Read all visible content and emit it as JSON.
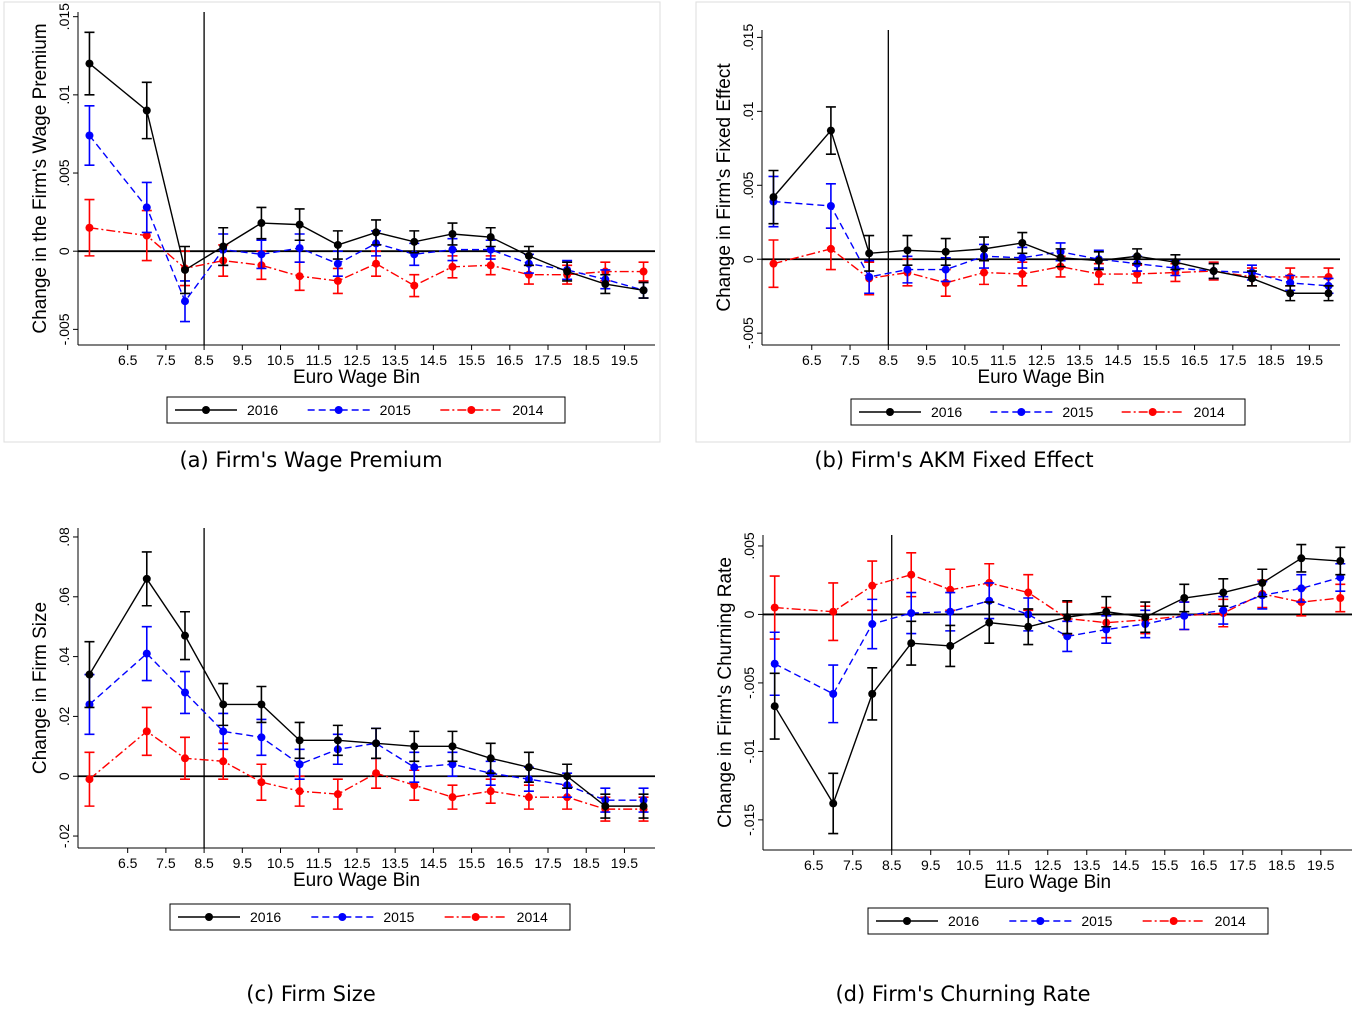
{
  "chart_data": [
    {
      "type": "line",
      "caption": "(a) Firm's Wage Premium",
      "ylabel": "Change in the Firm's Wage Premium",
      "xlabel": "Euro Wage Bin",
      "x": [
        5.5,
        7,
        8,
        9,
        10,
        11,
        12,
        13,
        14,
        15,
        16,
        17,
        18,
        19,
        20
      ],
      "xlim": [
        5.2,
        20.3
      ],
      "xticks": [
        6.5,
        7.5,
        8.5,
        9.5,
        10.5,
        11.5,
        12.5,
        13.5,
        14.5,
        15.5,
        16.5,
        17.5,
        18.5,
        19.5
      ],
      "ylim": [
        -0.006,
        0.0153
      ],
      "yticks": [
        {
          "value": -0.005,
          "label": "-.005"
        },
        0,
        {
          "value": 0.005,
          "label": ".005"
        },
        {
          "value": 0.01,
          "label": ".01"
        },
        {
          "value": 0.015,
          "label": ".015"
        }
      ],
      "vline": 8.5,
      "hline": 0,
      "series": [
        {
          "name": "2016",
          "color": "#000000",
          "style": "solid",
          "values": [
            0.012,
            0.009,
            -0.0012,
            0.0003,
            0.0018,
            0.0017,
            0.0004,
            0.0012,
            0.0006,
            0.0011,
            0.0009,
            -0.0003,
            -0.0013,
            -0.0021,
            -0.0025
          ],
          "errors": [
            0.002,
            0.0018,
            0.0015,
            0.0012,
            0.001,
            0.001,
            0.0009,
            0.0008,
            0.0007,
            0.0007,
            0.0006,
            0.0006,
            0.0006,
            0.0006,
            0.0005
          ]
        },
        {
          "name": "2015",
          "color": "#0000ff",
          "style": "dashed",
          "values": [
            0.0074,
            0.0028,
            -0.0032,
            0.0001,
            -0.0002,
            0.0002,
            -0.0008,
            0.0005,
            -0.0002,
            0.0001,
            0.0001,
            -0.0008,
            -0.0012,
            -0.0018,
            -0.0025
          ],
          "errors": [
            0.0019,
            0.0016,
            0.0013,
            0.001,
            0.0009,
            0.0009,
            0.0008,
            0.0008,
            0.0007,
            0.0007,
            0.0006,
            0.0006,
            0.0006,
            0.0006,
            0.0005
          ]
        },
        {
          "name": "2014",
          "color": "#ff0000",
          "style": "dashdot",
          "values": [
            0.0015,
            0.001,
            -0.0011,
            -0.0006,
            -0.0009,
            -0.0016,
            -0.0019,
            -0.0008,
            -0.0022,
            -0.001,
            -0.0009,
            -0.0015,
            -0.0015,
            -0.0013,
            -0.0013
          ],
          "errors": [
            0.0018,
            0.0016,
            0.0011,
            0.001,
            0.0009,
            0.0009,
            0.0008,
            0.0008,
            0.0007,
            0.0007,
            0.0006,
            0.0006,
            0.0006,
            0.0006,
            0.0006
          ]
        }
      ]
    },
    {
      "type": "line",
      "caption": "(b) Firm's AKM Fixed Effect",
      "ylabel": "Change in Firm's Fixed Effect",
      "xlabel": "Euro Wage Bin",
      "x": [
        5.5,
        7,
        8,
        9,
        10,
        11,
        12,
        13,
        14,
        15,
        16,
        17,
        18,
        19,
        20
      ],
      "xlim": [
        5.2,
        20.3
      ],
      "xticks": [
        6.5,
        7.5,
        8.5,
        9.5,
        10.5,
        11.5,
        12.5,
        13.5,
        14.5,
        15.5,
        16.5,
        17.5,
        18.5,
        19.5
      ],
      "ylim": [
        -0.0058,
        0.0155
      ],
      "yticks": [
        {
          "value": -0.005,
          "label": "-.005"
        },
        0,
        {
          "value": 0.005,
          "label": ".005"
        },
        {
          "value": 0.01,
          "label": ".01"
        },
        {
          "value": 0.015,
          "label": ".015"
        }
      ],
      "vline": 8.5,
      "hline": 0,
      "series": [
        {
          "name": "2016",
          "color": "#000000",
          "style": "solid",
          "values": [
            0.0042,
            0.0087,
            0.0004,
            0.0006,
            0.0005,
            0.0007,
            0.0011,
            0.0001,
            -0.0001,
            0.0002,
            -0.0002,
            -0.0008,
            -0.0013,
            -0.0023,
            -0.0023
          ],
          "errors": [
            0.0018,
            0.0016,
            0.0012,
            0.001,
            0.0009,
            0.0008,
            0.0007,
            0.0006,
            0.0006,
            0.0005,
            0.0005,
            0.0005,
            0.0005,
            0.0005,
            0.0005
          ]
        },
        {
          "name": "2015",
          "color": "#0000ff",
          "style": "dashed",
          "values": [
            0.0039,
            0.0036,
            -0.0012,
            -0.0007,
            -0.0007,
            0.0002,
            0.0001,
            0.0005,
            0.0,
            -0.0003,
            -0.0006,
            -0.0008,
            -0.0009,
            -0.0016,
            -0.0018
          ],
          "errors": [
            0.0017,
            0.0015,
            0.0011,
            0.0009,
            0.0008,
            0.0008,
            0.0007,
            0.0006,
            0.0006,
            0.0005,
            0.0005,
            0.0005,
            0.0005,
            0.0005,
            0.0005
          ]
        },
        {
          "name": "2014",
          "color": "#ff0000",
          "style": "dashdot",
          "values": [
            -0.0003,
            0.0007,
            -0.0013,
            -0.0009,
            -0.0016,
            -0.0009,
            -0.001,
            -0.0005,
            -0.001,
            -0.001,
            -0.0009,
            -0.0008,
            -0.0012,
            -0.0012,
            -0.0012
          ],
          "errors": [
            0.0016,
            0.0014,
            0.0011,
            0.0009,
            0.0009,
            0.0008,
            0.0008,
            0.0007,
            0.0007,
            0.0006,
            0.0006,
            0.0006,
            0.0006,
            0.0006,
            0.0006
          ]
        }
      ]
    },
    {
      "type": "line",
      "caption": "(c) Firm Size",
      "ylabel": "Change in Firm Size",
      "xlabel": "Euro Wage Bin",
      "x": [
        5.5,
        7,
        8,
        9,
        10,
        11,
        12,
        13,
        14,
        15,
        16,
        17,
        18,
        19,
        20
      ],
      "xlim": [
        5.2,
        20.3
      ],
      "xticks": [
        6.5,
        7.5,
        8.5,
        9.5,
        10.5,
        11.5,
        12.5,
        13.5,
        14.5,
        15.5,
        16.5,
        17.5,
        18.5,
        19.5
      ],
      "ylim": [
        -0.024,
        0.083
      ],
      "yticks": [
        {
          "value": -0.02,
          "label": "-.02"
        },
        0,
        {
          "value": 0.02,
          "label": ".02"
        },
        {
          "value": 0.04,
          "label": ".04"
        },
        {
          "value": 0.06,
          "label": ".06"
        },
        {
          "value": 0.08,
          "label": ".08"
        }
      ],
      "vline": 8.5,
      "hline": 0,
      "series": [
        {
          "name": "2016",
          "color": "#000000",
          "style": "solid",
          "values": [
            0.034,
            0.066,
            0.047,
            0.024,
            0.024,
            0.012,
            0.012,
            0.011,
            0.01,
            0.01,
            0.006,
            0.003,
            0.0,
            -0.01,
            -0.01
          ],
          "errors": [
            0.011,
            0.009,
            0.008,
            0.007,
            0.006,
            0.006,
            0.005,
            0.005,
            0.005,
            0.005,
            0.005,
            0.005,
            0.004,
            0.004,
            0.004
          ]
        },
        {
          "name": "2015",
          "color": "#0000ff",
          "style": "dashed",
          "values": [
            0.024,
            0.041,
            0.028,
            0.015,
            0.013,
            0.004,
            0.009,
            0.011,
            0.003,
            0.004,
            0.001,
            -0.001,
            -0.003,
            -0.008,
            -0.008
          ],
          "errors": [
            0.01,
            0.009,
            0.007,
            0.006,
            0.006,
            0.005,
            0.005,
            0.005,
            0.005,
            0.004,
            0.004,
            0.004,
            0.004,
            0.004,
            0.004
          ]
        },
        {
          "name": "2014",
          "color": "#ff0000",
          "style": "dashdot",
          "values": [
            -0.001,
            0.015,
            0.006,
            0.005,
            -0.002,
            -0.005,
            -0.006,
            0.001,
            -0.003,
            -0.007,
            -0.005,
            -0.007,
            -0.007,
            -0.011,
            -0.011
          ],
          "errors": [
            0.009,
            0.008,
            0.007,
            0.006,
            0.006,
            0.005,
            0.005,
            0.005,
            0.005,
            0.004,
            0.004,
            0.004,
            0.004,
            0.004,
            0.004
          ]
        }
      ]
    },
    {
      "type": "line",
      "caption": "(d) Firm's Churning Rate",
      "ylabel": "Change in Firm's Churning Rate",
      "xlabel": "Euro Wage Bin",
      "x": [
        5.5,
        7,
        8,
        9,
        10,
        11,
        12,
        13,
        14,
        15,
        16,
        17,
        18,
        19,
        20
      ],
      "xlim": [
        5.2,
        20.3
      ],
      "xticks": [
        6.5,
        7.5,
        8.5,
        9.5,
        10.5,
        11.5,
        12.5,
        13.5,
        14.5,
        15.5,
        16.5,
        17.5,
        18.5,
        19.5
      ],
      "ylim": [
        -0.0172,
        0.0058
      ],
      "yticks": [
        {
          "value": -0.015,
          "label": "-.015"
        },
        {
          "value": -0.01,
          "label": "-.01"
        },
        {
          "value": -0.005,
          "label": "-.005"
        },
        0,
        {
          "value": 0.005,
          "label": ".005"
        }
      ],
      "vline": 8.5,
      "hline": 0,
      "series": [
        {
          "name": "2016",
          "color": "#000000",
          "style": "solid",
          "values": [
            -0.0067,
            -0.0138,
            -0.0058,
            -0.0021,
            -0.0023,
            -0.0006,
            -0.0009,
            -0.0002,
            0.0002,
            -0.0002,
            0.0012,
            0.0016,
            0.0023,
            0.0041,
            0.0039
          ],
          "errors": [
            0.0024,
            0.0022,
            0.0019,
            0.0016,
            0.0015,
            0.0015,
            0.0013,
            0.0012,
            0.0011,
            0.0011,
            0.001,
            0.001,
            0.001,
            0.001,
            0.001
          ]
        },
        {
          "name": "2015",
          "color": "#0000ff",
          "style": "dashed",
          "values": [
            -0.0036,
            -0.0058,
            -0.0007,
            0.0001,
            0.0002,
            0.001,
            0.0,
            -0.0016,
            -0.0011,
            -0.0007,
            -0.0001,
            0.0003,
            0.0014,
            0.0019,
            0.0027
          ],
          "errors": [
            0.0023,
            0.0021,
            0.0018,
            0.0015,
            0.0014,
            0.0013,
            0.0012,
            0.0011,
            0.001,
            0.001,
            0.001,
            0.001,
            0.001,
            0.001,
            0.001
          ]
        },
        {
          "name": "2014",
          "color": "#ff0000",
          "style": "dashdot",
          "values": [
            0.0005,
            0.0002,
            0.0021,
            0.0029,
            0.0018,
            0.0023,
            0.0016,
            -0.0003,
            -0.0006,
            -0.0004,
            -0.0001,
            0.0001,
            0.0015,
            0.0009,
            0.0012
          ],
          "errors": [
            0.0023,
            0.0021,
            0.0018,
            0.0016,
            0.0015,
            0.0014,
            0.0013,
            0.0012,
            0.0011,
            0.001,
            0.001,
            0.001,
            0.001,
            0.001,
            0.001
          ]
        }
      ]
    }
  ]
}
